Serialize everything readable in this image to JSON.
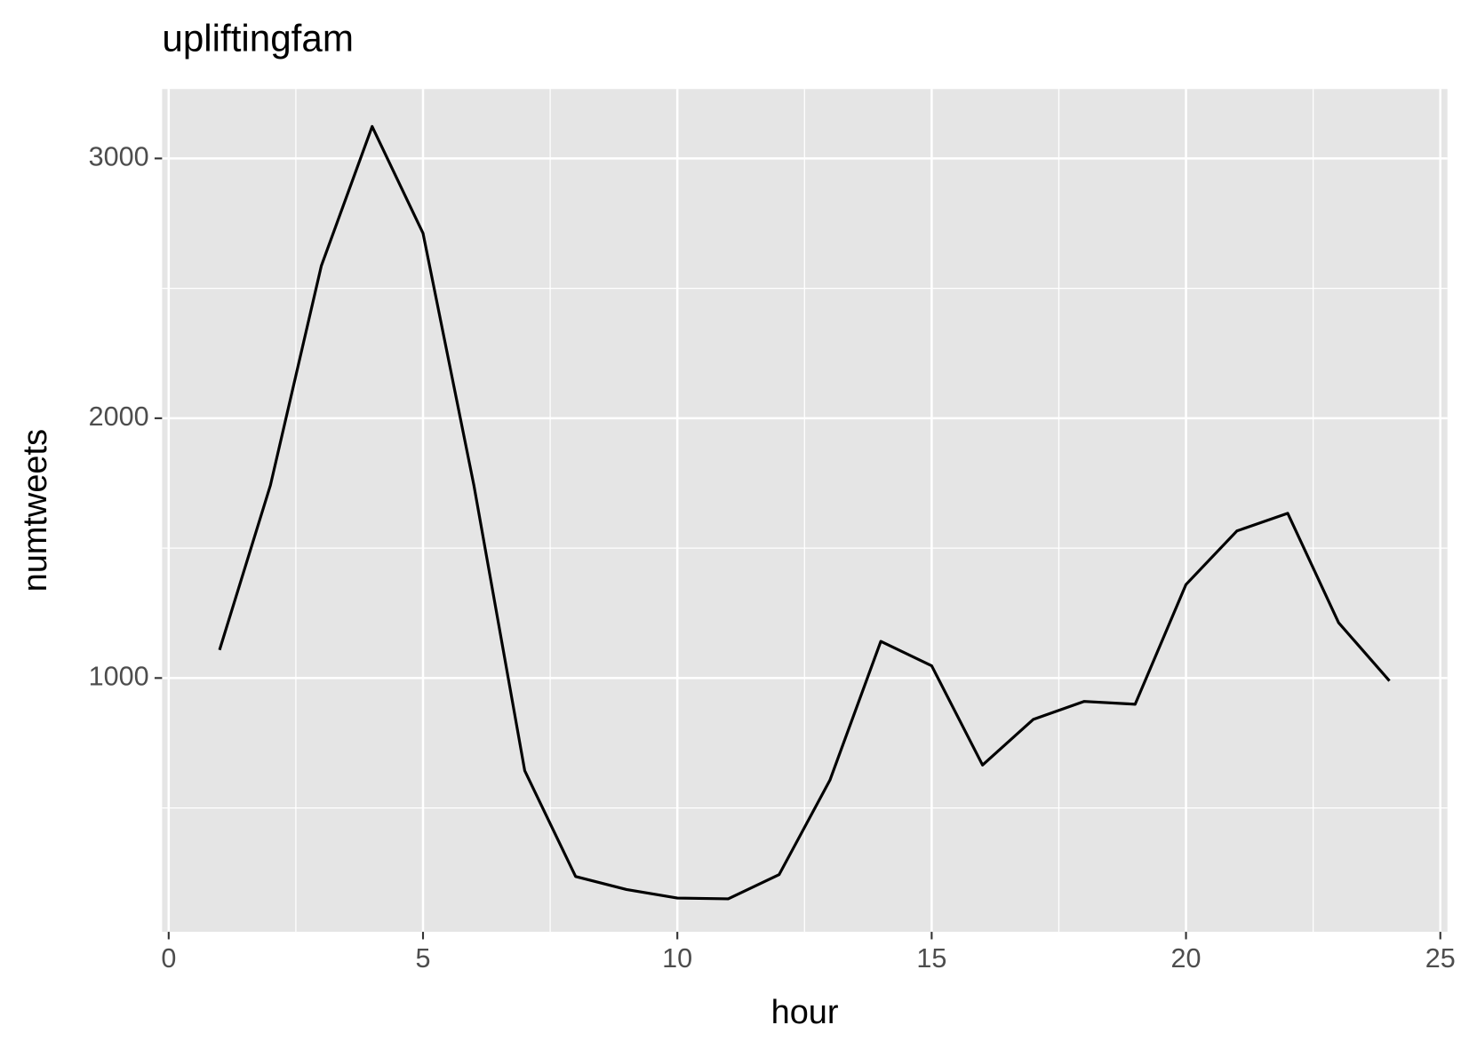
{
  "chart_data": {
    "type": "line",
    "title": "upliftingfam",
    "x_label": "hour",
    "y_label": "numtweets",
    "x": [
      1,
      2,
      3,
      4,
      5,
      6,
      7,
      8,
      9,
      10,
      11,
      12,
      13,
      14,
      15,
      16,
      17,
      18,
      19,
      20,
      21,
      22,
      23,
      24
    ],
    "values": [
      1108,
      1742,
      2586,
      3123,
      2712,
      1742,
      643,
      236,
      186,
      153,
      150,
      243,
      607,
      1141,
      1047,
      665,
      841,
      910,
      899,
      1360,
      1566,
      1634,
      1213,
      989
    ],
    "color": "#000000",
    "xlim": [
      -0.13,
      25.14
    ],
    "ylim": [
      23,
      3267
    ],
    "xticks": [
      0,
      5,
      10,
      15,
      20,
      25
    ],
    "yticks": [
      1000,
      2000,
      3000
    ],
    "grid": true
  }
}
